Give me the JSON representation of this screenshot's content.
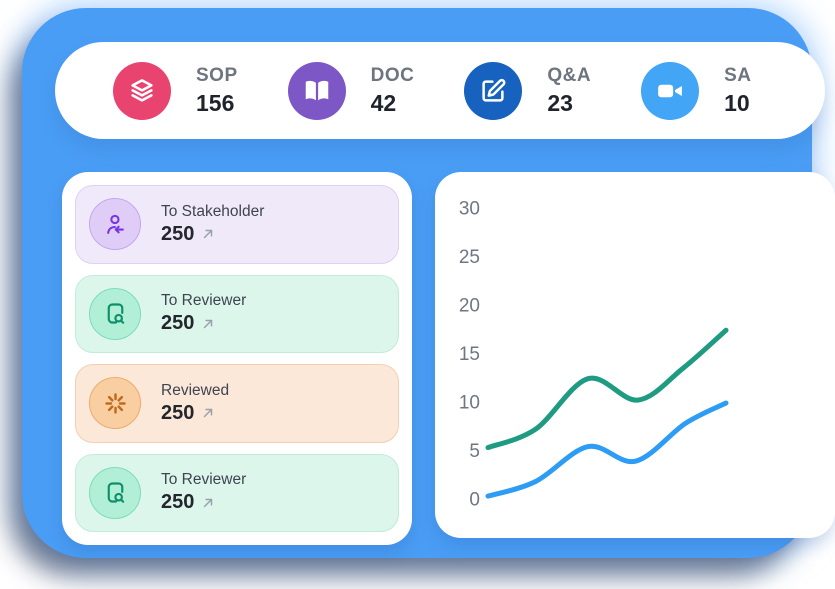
{
  "colors": {
    "container": "#4A9DF4",
    "panel": "#FFFFFF",
    "trend_arrow": "#9AA1AC"
  },
  "topbar": {
    "stats": [
      {
        "label": "SOP",
        "value": "156",
        "icon": "layers-icon",
        "color": "#E9446F"
      },
      {
        "label": "DOC",
        "value": "42",
        "icon": "book-open-icon",
        "color": "#7E57C6"
      },
      {
        "label": "Q&A",
        "value": "23",
        "icon": "edit-icon",
        "color": "#1662BE"
      },
      {
        "label": "SA",
        "value": "10",
        "icon": "video-camera-icon",
        "color": "#42A5F5"
      }
    ]
  },
  "sidebar": {
    "cards": [
      {
        "label": "To Stakeholder",
        "value": "250",
        "icon": "user-arrow-icon",
        "bg": "#F0E9FA",
        "border": "#DFD0F4",
        "icon_bg": "#DFCDF8",
        "icon_border": "#C3A6F0",
        "icon_color": "#7635E0"
      },
      {
        "label": "To Reviewer",
        "value": "250",
        "icon": "doc-search-icon",
        "bg": "#DDF6EB",
        "border": "#C0ECDA",
        "icon_bg": "#B2EFD7",
        "icon_border": "#7CDCB9",
        "icon_color": "#0E8F6B"
      },
      {
        "label": "Reviewed",
        "value": "250",
        "icon": "spinner-icon",
        "bg": "#FCE8D8",
        "border": "#F3D0B2",
        "icon_bg": "#F9CFA2",
        "icon_border": "#EBAA70",
        "icon_color": "#C06A1E"
      },
      {
        "label": "To Reviewer",
        "value": "250",
        "icon": "doc-search-icon",
        "bg": "#DDF6EB",
        "border": "#C0ECDA",
        "icon_bg": "#B2EFD7",
        "icon_border": "#7CDCB9",
        "icon_color": "#0E8F6B"
      }
    ]
  },
  "chart_data": {
    "type": "line",
    "title": "",
    "xlabel": "",
    "ylabel": "",
    "ylim": [
      0,
      30
    ],
    "yticks": [
      0,
      5,
      10,
      15,
      20,
      25,
      30
    ],
    "grid": false,
    "legend": "none",
    "series": [
      {
        "name": "series-teal",
        "color": "#1E9B82",
        "x": [
          0,
          0.2,
          0.42,
          0.63,
          0.82,
          1.0
        ],
        "values": [
          5.3,
          7.2,
          12.4,
          10.2,
          13.5,
          17.4
        ]
      },
      {
        "name": "series-blue",
        "color": "#2D9CF4",
        "x": [
          0,
          0.2,
          0.42,
          0.62,
          0.83,
          1.0
        ],
        "values": [
          0.3,
          1.8,
          5.4,
          3.9,
          7.8,
          9.9
        ]
      }
    ]
  }
}
